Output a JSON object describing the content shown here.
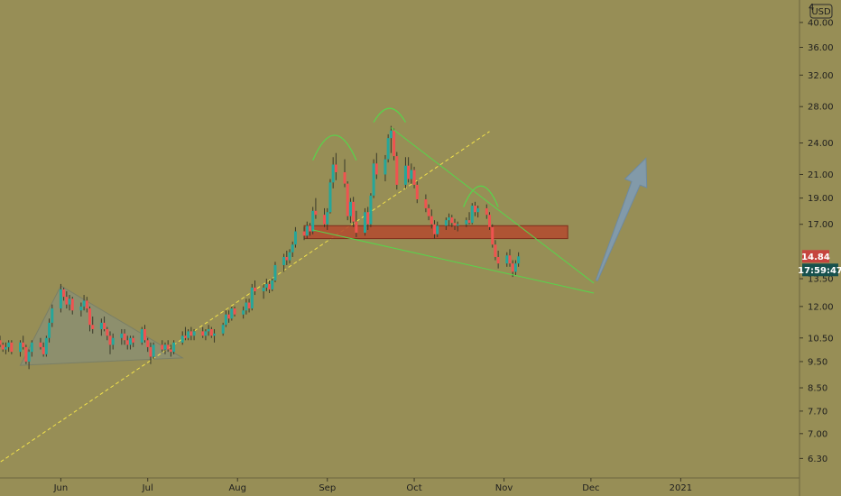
{
  "chart_data": {
    "type": "candlestick",
    "title": "",
    "xlabel": "",
    "ylabel": "",
    "currency": "USD",
    "scale": "log",
    "ylim": [
      5.8,
      44
    ],
    "y_ticks": [
      {
        "label": "40.00",
        "value": 40.0
      },
      {
        "label": "36.00",
        "value": 36.0
      },
      {
        "label": "32.00",
        "value": 32.0
      },
      {
        "label": "28.00",
        "value": 28.0
      },
      {
        "label": "24.00",
        "value": 24.0
      },
      {
        "label": "21.00",
        "value": 21.0
      },
      {
        "label": "19.00",
        "value": 19.0
      },
      {
        "label": "17.00",
        "value": 17.0
      },
      {
        "label": "13.50",
        "value": 13.5
      },
      {
        "label": "12.00",
        "value": 12.0
      },
      {
        "label": "10.50",
        "value": 10.5
      },
      {
        "label": "9.50",
        "value": 9.5
      },
      {
        "label": "8.50",
        "value": 8.5
      },
      {
        "label": "7.70",
        "value": 7.7
      },
      {
        "label": "7.00",
        "value": 7.0
      },
      {
        "label": "6.30",
        "value": 6.3
      }
    ],
    "top_tick_partial": "4",
    "x_ticks": [
      {
        "label": "Jun",
        "date": "2020-06-01"
      },
      {
        "label": "Jul",
        "date": "2020-07-01"
      },
      {
        "label": "Aug",
        "date": "2020-08-01"
      },
      {
        "label": "Sep",
        "date": "2020-09-01"
      },
      {
        "label": "Oct",
        "date": "2020-10-01"
      },
      {
        "label": "Nov",
        "date": "2020-11-01"
      },
      {
        "label": "Dec",
        "date": "2020-12-01"
      },
      {
        "label": "2021",
        "date": "2021-01-01"
      }
    ],
    "x_range": [
      "2020-05-11",
      "2021-02-11"
    ],
    "last_price": "14.84",
    "last_price_value": 14.84,
    "countdown": "17:59:47",
    "colors": {
      "background": "#978e56",
      "up": "#26a69a",
      "down": "#ef5350",
      "wick": "#3a3a2a",
      "trend": "#56d64b",
      "dashed": "#f2e24a",
      "zone": "#b34a2e",
      "arrow": "#7f9bb2",
      "triangle": "#8a8f76"
    },
    "candles": [
      [
        "2020-05-11",
        10.4,
        10.6,
        10.1,
        10.2
      ],
      [
        "2020-05-12",
        10.2,
        10.3,
        9.9,
        10.0
      ],
      [
        "2020-05-13",
        10.0,
        10.3,
        9.8,
        10.1
      ],
      [
        "2020-05-14",
        10.1,
        10.4,
        9.9,
        10.3
      ],
      [
        "2020-05-15",
        10.3,
        10.4,
        9.8,
        9.9
      ],
      [
        "2020-05-18",
        9.9,
        10.4,
        9.7,
        10.3
      ],
      [
        "2020-05-19",
        10.3,
        10.6,
        10.0,
        10.1
      ],
      [
        "2020-05-20",
        10.1,
        10.2,
        9.4,
        9.5
      ],
      [
        "2020-05-21",
        9.5,
        10.0,
        9.2,
        9.9
      ],
      [
        "2020-05-22",
        9.9,
        10.4,
        9.7,
        10.3
      ],
      [
        "2020-05-25",
        10.3,
        10.5,
        10.0,
        10.1
      ],
      [
        "2020-05-26",
        10.1,
        10.3,
        9.7,
        9.8
      ],
      [
        "2020-05-27",
        9.8,
        10.6,
        9.7,
        10.5
      ],
      [
        "2020-05-28",
        10.5,
        11.4,
        10.3,
        11.2
      ],
      [
        "2020-05-29",
        11.2,
        12.1,
        11.0,
        11.9
      ],
      [
        "2020-06-01",
        11.9,
        13.2,
        11.7,
        12.9
      ],
      [
        "2020-06-02",
        12.9,
        13.0,
        12.3,
        12.5
      ],
      [
        "2020-06-03",
        12.5,
        12.8,
        11.9,
        12.1
      ],
      [
        "2020-06-04",
        12.1,
        12.6,
        11.8,
        12.4
      ],
      [
        "2020-06-05",
        12.4,
        12.5,
        11.6,
        11.8
      ],
      [
        "2020-06-08",
        11.8,
        12.2,
        11.5,
        12.0
      ],
      [
        "2020-06-09",
        12.0,
        12.6,
        11.8,
        12.3
      ],
      [
        "2020-06-10",
        12.3,
        12.5,
        11.7,
        11.9
      ],
      [
        "2020-06-11",
        11.9,
        12.0,
        10.8,
        11.1
      ],
      [
        "2020-06-12",
        11.1,
        11.5,
        10.7,
        10.9
      ],
      [
        "2020-06-15",
        10.9,
        11.4,
        10.6,
        11.2
      ],
      [
        "2020-06-16",
        11.2,
        11.5,
        10.8,
        10.9
      ],
      [
        "2020-06-17",
        10.9,
        11.0,
        10.4,
        10.6
      ],
      [
        "2020-06-18",
        10.6,
        10.8,
        9.8,
        10.2
      ],
      [
        "2020-06-19",
        10.2,
        10.7,
        10.0,
        10.5
      ],
      [
        "2020-06-22",
        10.5,
        10.9,
        10.2,
        10.7
      ],
      [
        "2020-06-23",
        10.7,
        10.9,
        10.2,
        10.4
      ],
      [
        "2020-06-24",
        10.4,
        10.6,
        10.0,
        10.2
      ],
      [
        "2020-06-25",
        10.2,
        10.6,
        10.0,
        10.5
      ],
      [
        "2020-06-26",
        10.5,
        10.6,
        10.1,
        10.3
      ],
      [
        "2020-06-29",
        10.3,
        11.0,
        10.2,
        10.9
      ],
      [
        "2020-06-30",
        10.9,
        11.1,
        10.3,
        10.4
      ],
      [
        "2020-07-01",
        10.4,
        10.5,
        9.9,
        10.1
      ],
      [
        "2020-07-02",
        10.1,
        10.3,
        9.4,
        9.7
      ],
      [
        "2020-07-03",
        9.7,
        10.3,
        9.6,
        10.2
      ],
      [
        "2020-07-06",
        10.2,
        10.4,
        9.9,
        10.0
      ],
      [
        "2020-07-07",
        10.0,
        10.3,
        9.8,
        10.2
      ],
      [
        "2020-07-08",
        10.2,
        10.4,
        9.9,
        10.0
      ],
      [
        "2020-07-09",
        10.0,
        10.2,
        9.7,
        9.9
      ],
      [
        "2020-07-10",
        9.9,
        10.4,
        9.8,
        10.3
      ],
      [
        "2020-07-13",
        10.3,
        10.8,
        10.2,
        10.6
      ],
      [
        "2020-07-14",
        10.6,
        11.0,
        10.4,
        10.5
      ],
      [
        "2020-07-15",
        10.5,
        10.9,
        10.4,
        10.8
      ],
      [
        "2020-07-16",
        10.8,
        11.0,
        10.4,
        10.6
      ],
      [
        "2020-07-17",
        10.6,
        10.9,
        10.4,
        10.8
      ],
      [
        "2020-07-20",
        10.8,
        11.0,
        10.5,
        10.6
      ],
      [
        "2020-07-21",
        10.6,
        10.9,
        10.4,
        10.8
      ],
      [
        "2020-07-22",
        10.8,
        11.1,
        10.6,
        10.9
      ],
      [
        "2020-07-23",
        10.9,
        11.0,
        10.5,
        10.6
      ],
      [
        "2020-07-24",
        10.6,
        10.9,
        10.3,
        10.7
      ],
      [
        "2020-07-27",
        10.7,
        11.2,
        10.6,
        11.1
      ],
      [
        "2020-07-28",
        11.1,
        11.8,
        11.0,
        11.6
      ],
      [
        "2020-07-29",
        11.6,
        11.8,
        11.2,
        11.4
      ],
      [
        "2020-07-30",
        11.4,
        12.0,
        11.3,
        11.9
      ],
      [
        "2020-07-31",
        11.9,
        12.0,
        11.5,
        11.6
      ],
      [
        "2020-08-03",
        11.6,
        12.0,
        11.4,
        11.8
      ],
      [
        "2020-08-04",
        11.8,
        12.4,
        11.6,
        12.2
      ],
      [
        "2020-08-05",
        12.2,
        12.4,
        11.7,
        11.9
      ],
      [
        "2020-08-06",
        11.9,
        13.2,
        11.8,
        13.0
      ],
      [
        "2020-08-07",
        13.0,
        13.4,
        12.6,
        12.8
      ],
      [
        "2020-08-10",
        12.8,
        13.2,
        12.4,
        13.0
      ],
      [
        "2020-08-11",
        13.0,
        13.5,
        12.8,
        13.2
      ],
      [
        "2020-08-12",
        13.2,
        13.4,
        12.7,
        12.9
      ],
      [
        "2020-08-13",
        12.9,
        13.5,
        12.8,
        13.4
      ],
      [
        "2020-08-14",
        13.4,
        14.5,
        13.3,
        14.3
      ],
      [
        "2020-08-17",
        14.3,
        15.0,
        13.9,
        14.8
      ],
      [
        "2020-08-18",
        14.8,
        15.2,
        14.3,
        14.6
      ],
      [
        "2020-08-19",
        14.6,
        15.3,
        14.4,
        15.1
      ],
      [
        "2020-08-20",
        15.1,
        15.8,
        14.8,
        15.6
      ],
      [
        "2020-08-21",
        15.6,
        16.8,
        15.4,
        16.5
      ],
      [
        "2020-08-24",
        16.5,
        16.8,
        15.9,
        16.2
      ],
      [
        "2020-08-25",
        16.2,
        17.2,
        16.0,
        16.9
      ],
      [
        "2020-08-26",
        16.9,
        17.1,
        16.2,
        16.5
      ],
      [
        "2020-08-27",
        16.5,
        18.3,
        16.3,
        18.0
      ],
      [
        "2020-08-28",
        18.0,
        19.0,
        17.4,
        17.7
      ],
      [
        "2020-08-31",
        17.7,
        18.2,
        16.8,
        17.0
      ],
      [
        "2020-09-01",
        17.0,
        18.2,
        16.6,
        17.9
      ],
      [
        "2020-09-02",
        17.9,
        20.6,
        17.8,
        20.3
      ],
      [
        "2020-09-03",
        20.3,
        22.6,
        19.8,
        21.9
      ],
      [
        "2020-09-04",
        21.9,
        23.0,
        20.5,
        21.2
      ],
      [
        "2020-09-07",
        21.2,
        22.4,
        19.9,
        20.2
      ],
      [
        "2020-09-08",
        20.2,
        20.4,
        17.3,
        17.6
      ],
      [
        "2020-09-09",
        17.6,
        19.0,
        17.1,
        18.7
      ],
      [
        "2020-09-10",
        18.7,
        19.1,
        16.8,
        17.2
      ],
      [
        "2020-09-11",
        17.2,
        18.0,
        16.1,
        16.4
      ],
      [
        "2020-09-14",
        16.4,
        18.2,
        16.2,
        17.9
      ],
      [
        "2020-09-15",
        17.9,
        18.3,
        16.6,
        17.0
      ],
      [
        "2020-09-16",
        17.0,
        19.4,
        16.8,
        19.2
      ],
      [
        "2020-09-17",
        19.2,
        22.4,
        19.0,
        22.0
      ],
      [
        "2020-09-18",
        22.0,
        23.0,
        20.6,
        21.0
      ],
      [
        "2020-09-21",
        21.0,
        22.8,
        20.4,
        22.4
      ],
      [
        "2020-09-22",
        22.4,
        24.9,
        22.1,
        24.5
      ],
      [
        "2020-09-23",
        24.5,
        25.8,
        23.0,
        25.3
      ],
      [
        "2020-09-24",
        25.3,
        25.5,
        22.3,
        22.7
      ],
      [
        "2020-09-25",
        22.7,
        23.1,
        19.7,
        20.1
      ],
      [
        "2020-09-28",
        20.1,
        22.6,
        19.8,
        21.8
      ],
      [
        "2020-09-29",
        21.8,
        22.6,
        20.3,
        20.6
      ],
      [
        "2020-09-30",
        20.6,
        22.0,
        20.2,
        21.4
      ],
      [
        "2020-10-01",
        21.4,
        21.7,
        19.8,
        20.1
      ],
      [
        "2020-10-02",
        20.1,
        20.4,
        18.6,
        18.9
      ],
      [
        "2020-10-05",
        18.9,
        19.3,
        17.9,
        18.2
      ],
      [
        "2020-10-06",
        18.2,
        18.5,
        17.3,
        17.6
      ],
      [
        "2020-10-07",
        17.6,
        18.1,
        16.7,
        17.0
      ],
      [
        "2020-10-08",
        17.0,
        17.3,
        16.0,
        16.3
      ],
      [
        "2020-10-09",
        16.3,
        17.2,
        16.1,
        16.9
      ],
      [
        "2020-10-12",
        16.9,
        17.5,
        16.6,
        17.3
      ],
      [
        "2020-10-13",
        17.3,
        17.8,
        16.9,
        17.5
      ],
      [
        "2020-10-14",
        17.5,
        17.7,
        16.8,
        17.1
      ],
      [
        "2020-10-15",
        17.1,
        17.4,
        16.6,
        16.9
      ],
      [
        "2020-10-16",
        16.9,
        17.2,
        16.5,
        17.0
      ],
      [
        "2020-10-19",
        17.0,
        17.5,
        16.8,
        17.3
      ],
      [
        "2020-10-20",
        17.3,
        17.9,
        17.0,
        17.1
      ],
      [
        "2020-10-21",
        17.1,
        18.6,
        17.0,
        18.4
      ],
      [
        "2020-10-22",
        18.4,
        18.7,
        17.6,
        17.9
      ],
      [
        "2020-10-23",
        17.9,
        18.4,
        17.5,
        18.2
      ],
      [
        "2020-10-26",
        18.2,
        18.5,
        17.4,
        17.7
      ],
      [
        "2020-10-27",
        17.7,
        17.9,
        16.6,
        16.8
      ],
      [
        "2020-10-28",
        16.8,
        17.0,
        15.4,
        15.6
      ],
      [
        "2020-10-29",
        15.6,
        15.9,
        14.6,
        14.8
      ],
      [
        "2020-10-30",
        14.8,
        15.2,
        14.1,
        14.4
      ],
      [
        "2020-11-02",
        14.4,
        15.1,
        14.2,
        14.9
      ],
      [
        "2020-11-03",
        14.9,
        15.3,
        14.2,
        14.4
      ],
      [
        "2020-11-04",
        14.4,
        14.6,
        13.6,
        13.9
      ],
      [
        "2020-11-05",
        13.9,
        14.6,
        13.7,
        14.4
      ],
      [
        "2020-11-06",
        14.4,
        15.1,
        14.2,
        14.84
      ]
    ],
    "patterns": {
      "triangle": [
        [
          "2020-05-18",
          9.35
        ],
        [
          "2020-06-01",
          13.1
        ],
        [
          "2020-07-13",
          9.65
        ]
      ],
      "dashed_trend": [
        [
          "2020-05-04",
          5.85
        ],
        [
          "2020-10-27",
          25.2
        ]
      ],
      "support_line": [
        [
          "2020-08-27",
          16.6
        ],
        [
          "2020-12-02",
          12.7
        ]
      ],
      "resistance_line": [
        [
          "2020-09-23",
          25.6
        ],
        [
          "2020-12-02",
          13.25
        ]
      ],
      "zone": {
        "from": "2020-08-24",
        "to": "2020-11-23",
        "high": 16.9,
        "low": 16.0
      },
      "humps": [
        {
          "from": "2020-08-27",
          "to": "2020-09-11",
          "level": 22.3,
          "peak": 24.8
        },
        {
          "from": "2020-09-17",
          "to": "2020-09-28",
          "level": 26.2,
          "peak": 27.8
        },
        {
          "from": "2020-10-18",
          "to": "2020-10-30",
          "level": 18.3,
          "peak": 20.0
        }
      ],
      "arrow": {
        "from": [
          "2020-12-03",
          13.4
        ],
        "to": [
          "2020-12-20",
          22.5
        ]
      }
    }
  }
}
